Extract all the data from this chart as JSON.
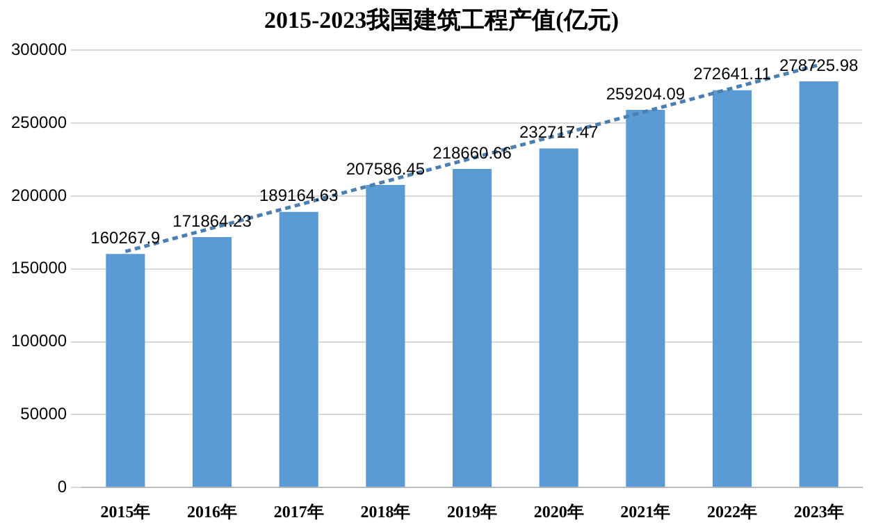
{
  "chart_data": {
    "type": "bar",
    "title": "2015-2023我国建筑工程产值(亿元)",
    "categories": [
      "2015年",
      "2016年",
      "2017年",
      "2018年",
      "2019年",
      "2020年",
      "2021年",
      "2022年",
      "2023年"
    ],
    "series": [
      {
        "color": "#5b9bd5",
        "values": [
          160267.9,
          171864.23,
          189164.63,
          207586.45,
          218660.66,
          232717.47,
          259204.09,
          272641.11,
          278725.98
        ],
        "value_labels": [
          "160267.9",
          "171864.23",
          "189164.63",
          "207586.45",
          "218660.66",
          "232717.47",
          "259204.09",
          "272641.11",
          "278725.98"
        ]
      },
      {
        "type": "line",
        "color": "#4a7fb0",
        "line_style": "dashed",
        "marker": "none",
        "x": [
          "2015年",
          "2023年"
        ],
        "values": [
          162000,
          290000
        ]
      }
    ],
    "ylim": [
      0,
      300000
    ],
    "yticks": [
      0,
      50000,
      100000,
      150000,
      200000,
      250000,
      300000
    ],
    "grid": "y",
    "legend": false
  }
}
